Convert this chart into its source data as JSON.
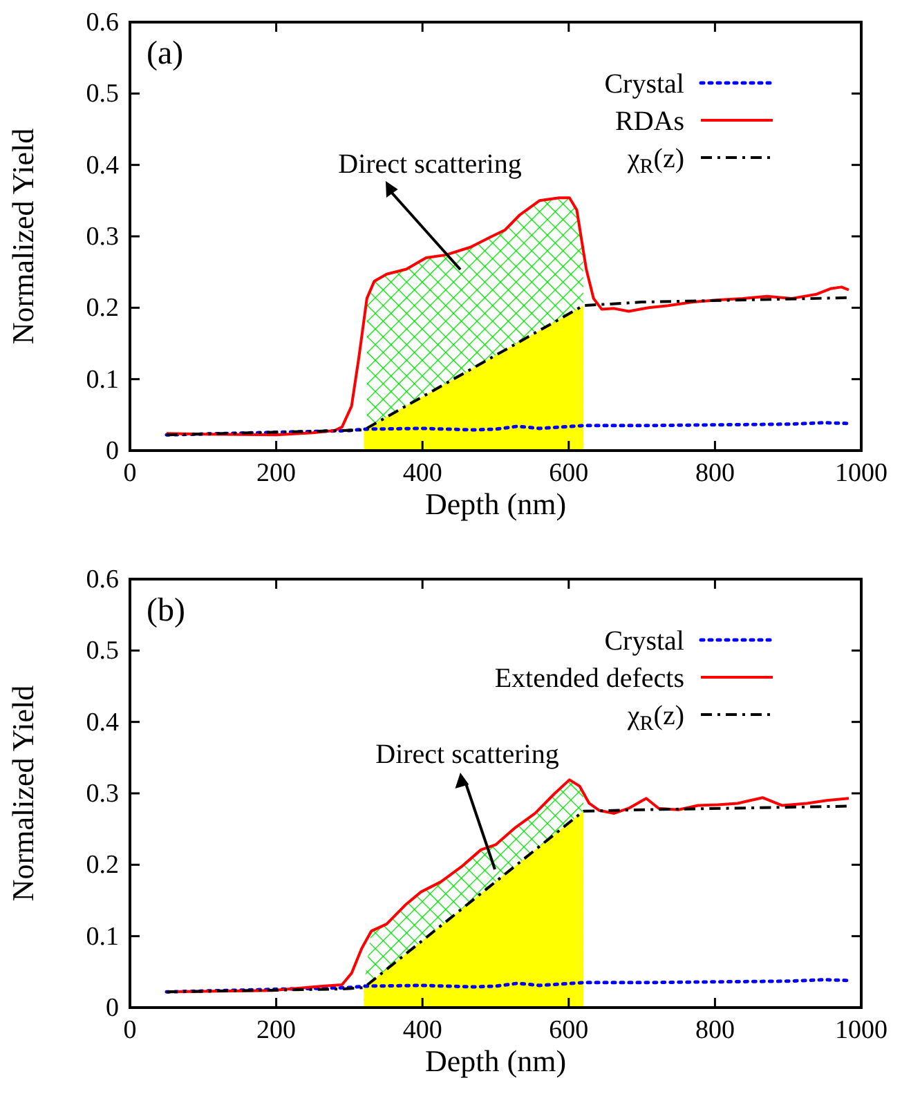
{
  "chart_data": [
    {
      "type": "line",
      "xlabel": "Depth (nm)",
      "ylabel": "Normalized Yield",
      "xlim": [
        0,
        1000
      ],
      "xticks": [
        0,
        200,
        400,
        600,
        800,
        1000
      ],
      "ylim": [
        0,
        0.6
      ],
      "yticks": [
        0,
        0.1,
        0.2,
        0.3,
        0.4,
        0.5,
        0.6
      ],
      "grid": false,
      "legend": "top right",
      "annotations": [
        "(a)",
        "Direct scattering"
      ],
      "series": [
        {
          "name": "Crystal",
          "color": "#0000ff",
          "line_style": "dotted",
          "x": [
            50,
            300,
            320,
            400,
            470,
            500,
            530,
            560,
            620,
            700,
            800,
            900,
            950,
            980
          ],
          "values": [
            0.022,
            0.028,
            0.03,
            0.031,
            0.029,
            0.03,
            0.034,
            0.031,
            0.035,
            0.035,
            0.036,
            0.037,
            0.039,
            0.038
          ]
        },
        {
          "name": "RDAs",
          "color": "#ff0000",
          "line_style": "solid",
          "x": [
            50,
            100,
            200,
            250,
            280,
            290,
            303,
            313,
            324,
            334,
            351,
            378,
            405,
            432,
            466,
            493,
            513,
            533,
            560,
            587,
            601,
            611,
            624,
            634,
            645,
            662,
            682,
            709,
            736,
            770,
            804,
            838,
            871,
            905,
            939,
            959,
            973,
            983
          ],
          "values": [
            0.024,
            0.023,
            0.022,
            0.025,
            0.028,
            0.033,
            0.062,
            0.13,
            0.213,
            0.237,
            0.247,
            0.254,
            0.27,
            0.274,
            0.285,
            0.299,
            0.309,
            0.33,
            0.35,
            0.354,
            0.354,
            0.337,
            0.254,
            0.213,
            0.198,
            0.199,
            0.195,
            0.2,
            0.203,
            0.208,
            0.211,
            0.213,
            0.216,
            0.213,
            0.219,
            0.227,
            0.229,
            0.225
          ]
        },
        {
          "name": "χ$_{R}$(z)",
          "color": "#000000",
          "line_style": "dashdot",
          "x": [
            50,
            290,
            320,
            620,
            700,
            980
          ],
          "values": [
            0.022,
            0.028,
            0.029,
            0.203,
            0.208,
            0.214
          ]
        },
        {
          "type": "area",
          "color": "#00dd00",
          "x": [
            324,
            334,
            351,
            378,
            405,
            432,
            466,
            493,
            513,
            533,
            560,
            587,
            601,
            611,
            620
          ],
          "values": [
            0.213,
            0.237,
            0.247,
            0.254,
            0.27,
            0.274,
            0.285,
            0.299,
            0.309,
            0.33,
            0.35,
            0.354,
            0.354,
            0.337,
            0.28
          ]
        },
        {
          "type": "area",
          "color": "#ffff00",
          "x": [
            320,
            620
          ],
          "values": [
            0.029,
            0.203
          ]
        }
      ]
    },
    {
      "type": "line",
      "xlabel": "Depth (nm)",
      "ylabel": "Normalized Yield",
      "xlim": [
        0,
        1000
      ],
      "xticks": [
        0,
        200,
        400,
        600,
        800,
        1000
      ],
      "ylim": [
        0,
        0.6
      ],
      "yticks": [
        0,
        0.1,
        0.2,
        0.3,
        0.4,
        0.5,
        0.6
      ],
      "grid": false,
      "legend": "top right",
      "annotations": [
        "(b)",
        "Direct scattering"
      ],
      "series": [
        {
          "name": "Crystal",
          "color": "#0000ff",
          "line_style": "dotted",
          "x": [
            50,
            300,
            320,
            400,
            470,
            500,
            530,
            560,
            620,
            700,
            800,
            900,
            950,
            980
          ],
          "values": [
            0.022,
            0.028,
            0.03,
            0.031,
            0.029,
            0.03,
            0.034,
            0.031,
            0.035,
            0.035,
            0.036,
            0.037,
            0.039,
            0.038
          ]
        },
        {
          "name": "Extended defects",
          "color": "#ff0000",
          "line_style": "solid",
          "x": [
            50,
            195,
            263,
            290,
            303,
            317,
            330,
            351,
            378,
            398,
            425,
            453,
            480,
            500,
            527,
            554,
            581,
            601,
            615,
            628,
            642,
            662,
            682,
            706,
            723,
            750,
            777,
            804,
            831,
            865,
            892,
            926,
            953,
            983
          ],
          "values": [
            0.022,
            0.024,
            0.03,
            0.032,
            0.048,
            0.083,
            0.107,
            0.117,
            0.145,
            0.162,
            0.176,
            0.197,
            0.221,
            0.228,
            0.252,
            0.272,
            0.3,
            0.319,
            0.31,
            0.286,
            0.276,
            0.272,
            0.279,
            0.293,
            0.279,
            0.277,
            0.283,
            0.284,
            0.286,
            0.294,
            0.283,
            0.286,
            0.29,
            0.293
          ]
        },
        {
          "name": "χ$_{R}$(z)",
          "color": "#000000",
          "line_style": "dashdot",
          "x": [
            50,
            290,
            320,
            620,
            700,
            980
          ],
          "values": [
            0.022,
            0.026,
            0.028,
            0.275,
            0.277,
            0.282
          ]
        },
        {
          "type": "area",
          "color": "#00dd00",
          "x": [
            320,
            330,
            351,
            378,
            398,
            425,
            453,
            480,
            500,
            527,
            554,
            581,
            601,
            615,
            620
          ],
          "values": [
            0.03,
            0.107,
            0.117,
            0.145,
            0.162,
            0.176,
            0.197,
            0.221,
            0.228,
            0.252,
            0.272,
            0.3,
            0.319,
            0.31,
            0.305
          ]
        },
        {
          "type": "area",
          "color": "#ffff00",
          "x": [
            320,
            620
          ],
          "values": [
            0.028,
            0.275
          ]
        }
      ]
    }
  ]
}
